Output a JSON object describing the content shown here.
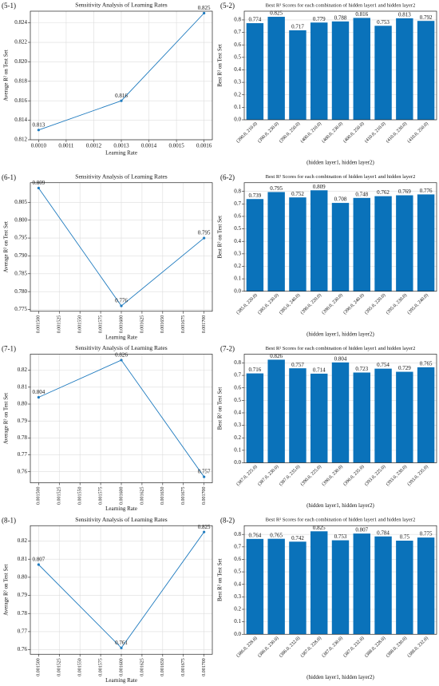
{
  "chart_data": [
    {
      "type": "line",
      "panel": "(5-1)",
      "title": "Sensitivity Analysis of Learning Rates",
      "x_label": "Learning Rate",
      "y_label": "Average  R² on Test Set",
      "color": "#1f7bbf",
      "grid": true,
      "x": [
        0.001,
        0.0013,
        0.0016
      ],
      "values": [
        0.813,
        0.816,
        0.825
      ],
      "xlim": [
        0.00097,
        0.00163
      ],
      "xticks": [
        {
          "value": 0.001,
          "label": "0.0010"
        },
        0.0011,
        0.0012,
        0.0013,
        0.0014,
        0.0015,
        0.0016
      ],
      "ylim": [
        0.812,
        0.8252
      ],
      "yticks": [
        0.812,
        0.814,
        0.816,
        0.818,
        {
          "value": 0.82,
          "label": "0.820"
        },
        0.822,
        0.824
      ]
    },
    {
      "type": "bar",
      "panel": "(5-2)",
      "title": "Best  R² Scores for each combination of hidden layer1 and hidden layer2",
      "x_label": "(hidden layer1, hidden layer2)",
      "y_label": "Best  R² on Test Set",
      "color": "#0a72ba",
      "grid": true,
      "categories": [
        "(390.0, 210.0)",
        "(390.0, 230.0)",
        "(390.0, 250.0)",
        "(400.0, 210.0)",
        "(400.0, 230.0)",
        "(400.0, 250.0)",
        "(410.0, 210.0)",
        "(410.0, 230.0)",
        "(410.0, 250.0)"
      ],
      "values": [
        0.774,
        0.825,
        0.717,
        0.779,
        0.788,
        0.816,
        0.753,
        0.813,
        0.792
      ],
      "ylim": [
        0,
        0.87
      ],
      "yticks": [
        {
          "value": 0,
          "label": "0.0"
        },
        0.1,
        0.2,
        0.3,
        0.4,
        0.5,
        0.6,
        0.7,
        0.8
      ]
    },
    {
      "type": "line",
      "panel": "(6-1)",
      "title": "Sensitivity Analysis of Learning Rates",
      "x_label": "Learning Rate",
      "y_label": "Average  R² on Test Set",
      "color": "#1f7bbf",
      "grid": true,
      "x": [
        0.0015,
        0.0016,
        0.0017
      ],
      "values": [
        0.809,
        0.776,
        0.795
      ],
      "xlim": [
        0.00149,
        0.00171
      ],
      "xticks": [
        {
          "value": 0.0015,
          "label": "0.001500"
        },
        0.001525,
        {
          "value": 0.00155,
          "label": "0.001550"
        },
        0.001575,
        {
          "value": 0.0016,
          "label": "0.001600"
        },
        0.001625,
        {
          "value": 0.00165,
          "label": "0.001650"
        },
        0.001675,
        {
          "value": 0.0017,
          "label": "0.001700"
        }
      ],
      "ylim": [
        0.7745,
        0.8105
      ],
      "yticks": [
        0.775,
        {
          "value": 0.78,
          "label": "0.780"
        },
        0.785,
        {
          "value": 0.79,
          "label": "0.790"
        },
        0.795,
        {
          "value": 0.8,
          "label": "0.800"
        },
        0.805
      ]
    },
    {
      "type": "bar",
      "panel": "(6-2)",
      "title": "Best  R² Scores for each combination of hidden layer1 and hidden layer2",
      "x_label": "(hidden layer1, hidden layer2)",
      "y_label": "Best  R² on Test Set",
      "color": "#0a72ba",
      "grid": true,
      "categories": [
        "(385.0, 220.0)",
        "(385.0, 230.0)",
        "(385.0, 240.0)",
        "(390.0, 220.0)",
        "(390.0, 230.0)",
        "(390.0, 240.0)",
        "(395.0, 220.0)",
        "(395.0, 230.0)",
        "(395.0, 240.0)"
      ],
      "values": [
        0.739,
        0.795,
        0.752,
        0.809,
        0.708,
        0.748,
        0.762,
        0.769,
        0.776
      ],
      "ylim": [
        0,
        0.87
      ],
      "yticks": [
        {
          "value": 0,
          "label": "0.0"
        },
        0.1,
        0.2,
        0.3,
        0.4,
        0.5,
        0.6,
        0.7,
        0.8
      ]
    },
    {
      "type": "line",
      "panel": "(7-1)",
      "title": "Sensitivity Analysis of Learning Rates",
      "x_label": "Learning Rate",
      "y_label": "Average  R² on Test Set",
      "color": "#1f7bbf",
      "grid": true,
      "x": [
        0.0015,
        0.0016,
        0.0017
      ],
      "values": [
        0.804,
        0.826,
        0.757
      ],
      "xlim": [
        0.00149,
        0.00171
      ],
      "xticks": [
        {
          "value": 0.0015,
          "label": "0.001500"
        },
        0.001525,
        {
          "value": 0.00155,
          "label": "0.001550"
        },
        0.001575,
        {
          "value": 0.0016,
          "label": "0.001600"
        },
        0.001625,
        {
          "value": 0.00165,
          "label": "0.001650"
        },
        0.001675,
        {
          "value": 0.0017,
          "label": "0.001700"
        }
      ],
      "ylim": [
        0.7535,
        0.8295
      ],
      "yticks": [
        0.76,
        0.77,
        0.78,
        0.79,
        {
          "value": 0.8,
          "label": "0.80"
        },
        0.81,
        0.82
      ]
    },
    {
      "type": "bar",
      "panel": "(7-2)",
      "title": "Best  R² Scores for each combination of hidden layer1 and hidden layer2",
      "x_label": "(hidden layer1, hidden layer2)",
      "y_label": "Best  R² on Test Set",
      "color": "#0a72ba",
      "grid": true,
      "categories": [
        "(387.0, 225.0)",
        "(387.0, 230.0)",
        "(387.0, 235.0)",
        "(390.0, 225.0)",
        "(390.0, 230.0)",
        "(390.0, 235.0)",
        "(393.0, 225.0)",
        "(393.0, 230.0)",
        "(393.0, 235.0)"
      ],
      "values": [
        0.716,
        0.826,
        0.757,
        0.714,
        0.804,
        0.723,
        0.754,
        0.729,
        0.765
      ],
      "ylim": [
        0,
        0.87
      ],
      "yticks": [
        {
          "value": 0,
          "label": "0.0"
        },
        0.1,
        0.2,
        0.3,
        0.4,
        0.5,
        0.6,
        0.7,
        0.8
      ]
    },
    {
      "type": "line",
      "panel": "(8-1)",
      "title": "Sensitivity Analysis of Learning Rates",
      "x_label": "Learning Rate",
      "y_label": "Average  R² on Test Set",
      "color": "#1f7bbf",
      "grid": true,
      "x": [
        0.0015,
        0.0016,
        0.0017
      ],
      "values": [
        0.807,
        0.761,
        0.825
      ],
      "xlim": [
        0.00149,
        0.00171
      ],
      "xticks": [
        {
          "value": 0.0015,
          "label": "0.001500"
        },
        0.001525,
        {
          "value": 0.00155,
          "label": "0.001550"
        },
        0.001575,
        {
          "value": 0.0016,
          "label": "0.001600"
        },
        0.001625,
        {
          "value": 0.00165,
          "label": "0.001650"
        },
        0.001675,
        {
          "value": 0.0017,
          "label": "0.001700"
        }
      ],
      "ylim": [
        0.7575,
        0.8285
      ],
      "yticks": [
        0.76,
        0.77,
        0.78,
        0.79,
        {
          "value": 0.8,
          "label": "0.80"
        },
        0.81,
        0.82
      ]
    },
    {
      "type": "bar",
      "panel": "(8-2)",
      "title": "Best  R² Scores for each combination of hidden layer1 and hidden layer2",
      "x_label": "(hidden layer1, hidden layer2)",
      "y_label": "Best  R² on Test Set",
      "color": "#0a72ba",
      "grid": true,
      "categories": [
        "(386.0, 228.0)",
        "(386.0, 230.0)",
        "(386.0, 232.0)",
        "(387.0, 228.0)",
        "(387.0, 230.0)",
        "(387.0, 232.0)",
        "(388.0, 228.0)",
        "(388.0, 230.0)",
        "(388.0, 232.0)"
      ],
      "values": [
        0.764,
        0.765,
        0.742,
        0.825,
        0.753,
        0.807,
        0.784,
        0.75,
        0.775
      ],
      "ylim": [
        0,
        0.87
      ],
      "yticks": [
        {
          "value": 0,
          "label": "0.0"
        },
        0.1,
        0.2,
        0.3,
        0.4,
        0.5,
        0.6,
        0.7,
        0.8
      ]
    }
  ]
}
